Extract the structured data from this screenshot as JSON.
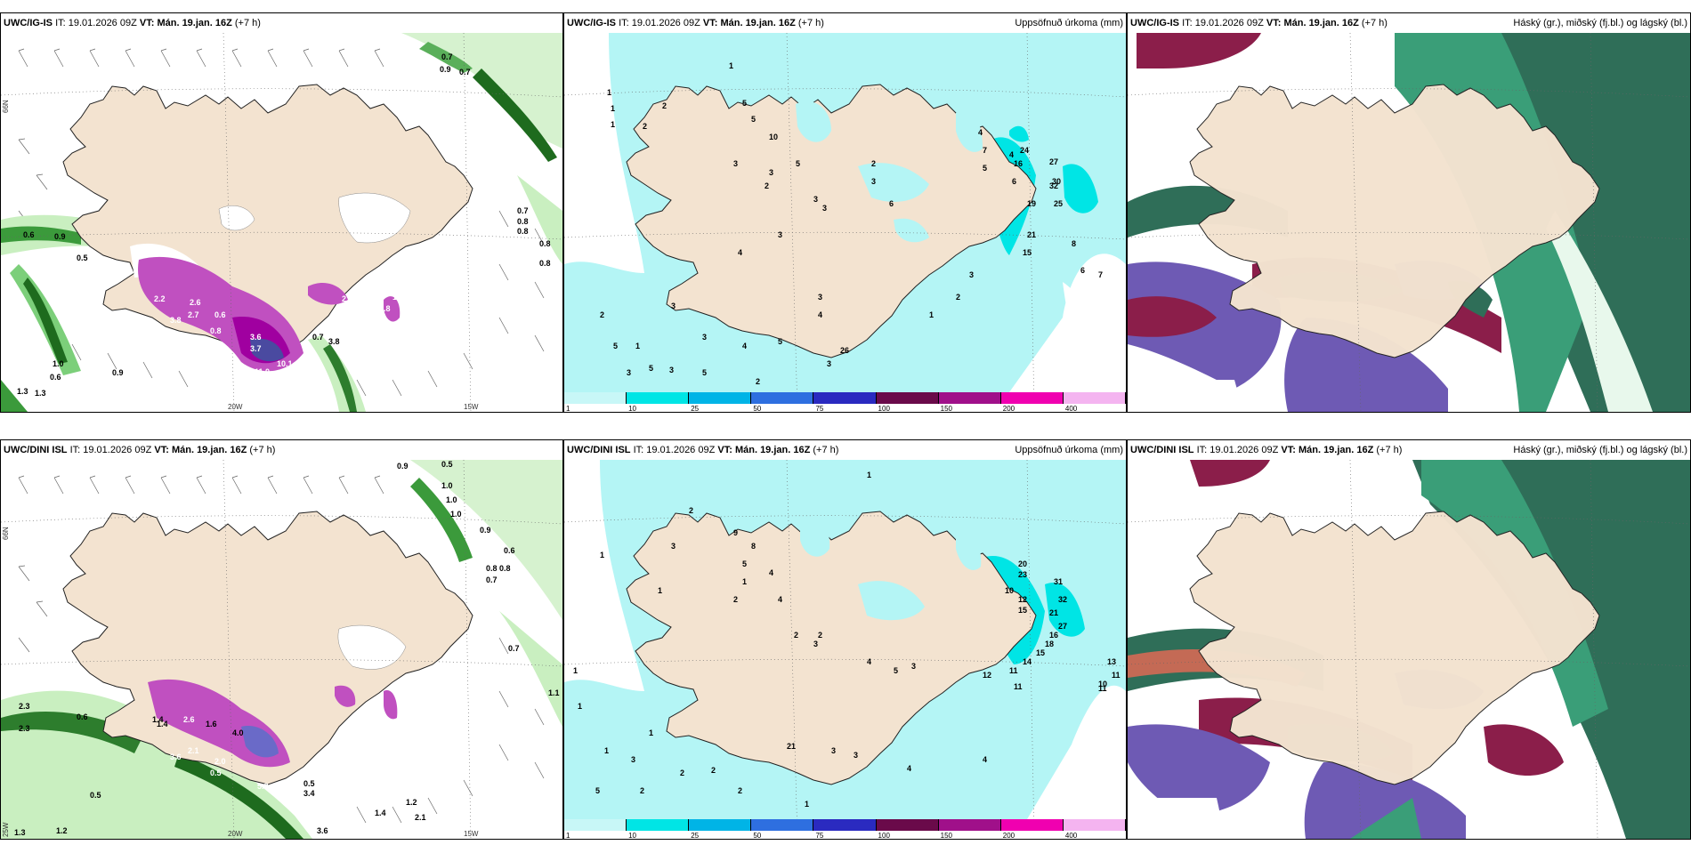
{
  "panels": {
    "p1": {
      "model": "UWC/IG-IS",
      "it_label": "IT:",
      "it_value": "19.01.2026 09Z",
      "vt_label": "VT:",
      "vt_value": "Mán. 19.jan. 16Z",
      "lead": "(+7 h)",
      "title": ""
    },
    "p2": {
      "model": "UWC/IG-IS",
      "it_label": "IT:",
      "it_value": "19.01.2026 09Z",
      "vt_label": "VT:",
      "vt_value": "Mán. 19.jan. 16Z",
      "lead": "(+7 h)",
      "title": "Uppsöfnuð úrkoma (mm)"
    },
    "p3": {
      "model": "UWC/IG-IS",
      "it_label": "IT:",
      "it_value": "19.01.2026 09Z",
      "vt_label": "VT:",
      "vt_value": "Mán. 19.jan. 16Z",
      "lead": "(+7 h)",
      "title": "Háský (gr.), miðský (fj.bl.) og lágský (bl.)"
    },
    "p4": {
      "model": "UWC/DINI ISL",
      "it_label": "IT:",
      "it_value": "19.01.2026 09Z",
      "vt_label": "VT:",
      "vt_value": "Mán. 19.jan. 16Z",
      "lead": "(+7 h)",
      "title": ""
    },
    "p5": {
      "model": "UWC/DINI ISL",
      "it_label": "IT:",
      "it_value": "19.01.2026 09Z",
      "vt_label": "VT:",
      "vt_value": "Mán. 19.jan. 16Z",
      "lead": "(+7 h)",
      "title": "Uppsöfnuð úrkoma (mm)"
    },
    "p6": {
      "model": "UWC/DINI ISL",
      "it_label": "IT:",
      "it_value": "19.01.2026 09Z",
      "vt_label": "VT:",
      "vt_value": "Mán. 19.jan. 16Z",
      "lead": "(+7 h)",
      "title": "Háský (gr.), miðský (fj.bl.) og lágský (bl.)"
    }
  },
  "coords": {
    "n66": "66N",
    "w20": "20W",
    "w15": "15W",
    "w25": "25W"
  },
  "colorbar": {
    "ticks": [
      "1",
      "10",
      "25",
      "50",
      "75",
      "100",
      "150",
      "200",
      "400"
    ],
    "colors": [
      "#c8f7f7",
      "#00e5e5",
      "#00b4e6",
      "#2e6fe0",
      "#2a2ac0",
      "#6a0a4a",
      "#a0108a",
      "#f000b0",
      "#f4b4f0"
    ]
  },
  "labels": {
    "p1": [
      "0.7",
      "0.9",
      "0.7",
      "0.6",
      "0.9",
      "0.5",
      "0.7",
      "0.8",
      "0.8",
      "0.8",
      "0.8",
      "2.2",
      "2.6",
      "2.7",
      "3.8",
      "0.6",
      "0.8",
      "3.6",
      "3.7",
      "2.9",
      "10.1",
      "9.8",
      "11.0",
      "0.7",
      "3.8",
      "0.9",
      "1.0",
      "0.6",
      "1.3",
      "1.3",
      "2.8",
      "1.9"
    ],
    "p2": [
      "1",
      "1",
      "1",
      "1",
      "2",
      "2",
      "5",
      "5",
      "10",
      "3",
      "3",
      "5",
      "2",
      "3",
      "3",
      "2",
      "3",
      "6",
      "4",
      "7",
      "5",
      "4",
      "6",
      "24",
      "16",
      "27",
      "30",
      "25",
      "32",
      "19",
      "21",
      "15",
      "8",
      "6",
      "7",
      "3",
      "2",
      "1",
      "4",
      "3",
      "3",
      "4",
      "3",
      "4",
      "5",
      "3",
      "26",
      "2",
      "5",
      "3",
      "3",
      "1",
      "5",
      "2",
      "3",
      "5"
    ],
    "p4": [
      "0.9",
      "0.5",
      "1.0",
      "1.0",
      "1.0",
      "0.9",
      "0.6",
      "0.8",
      "0.7",
      "0.8",
      "0.7",
      "1.1",
      "2.3",
      "0.6",
      "1.4",
      "2.6",
      "1.6",
      "4.0",
      "3.6",
      "2.1",
      "2.0",
      "0.5",
      "5.8",
      "3.4",
      "0.5",
      "1.4",
      "2.1",
      "1.2",
      "0.5",
      "1.2",
      "2.3",
      "3.6",
      "1.3",
      "1.4"
    ],
    "p5": [
      "1",
      "1",
      "1",
      "2",
      "3",
      "9",
      "8",
      "4",
      "5",
      "4",
      "20",
      "23",
      "10",
      "12",
      "15",
      "21",
      "31",
      "32",
      "27",
      "16",
      "18",
      "15",
      "14",
      "11",
      "11",
      "12",
      "10",
      "11",
      "13",
      "11",
      "1",
      "2",
      "1",
      "2",
      "3",
      "4",
      "5",
      "3",
      "21",
      "3",
      "3",
      "4",
      "4",
      "2",
      "2",
      "2",
      "1",
      "2",
      "5",
      "3",
      "1",
      "1",
      "1",
      "2"
    ]
  }
}
